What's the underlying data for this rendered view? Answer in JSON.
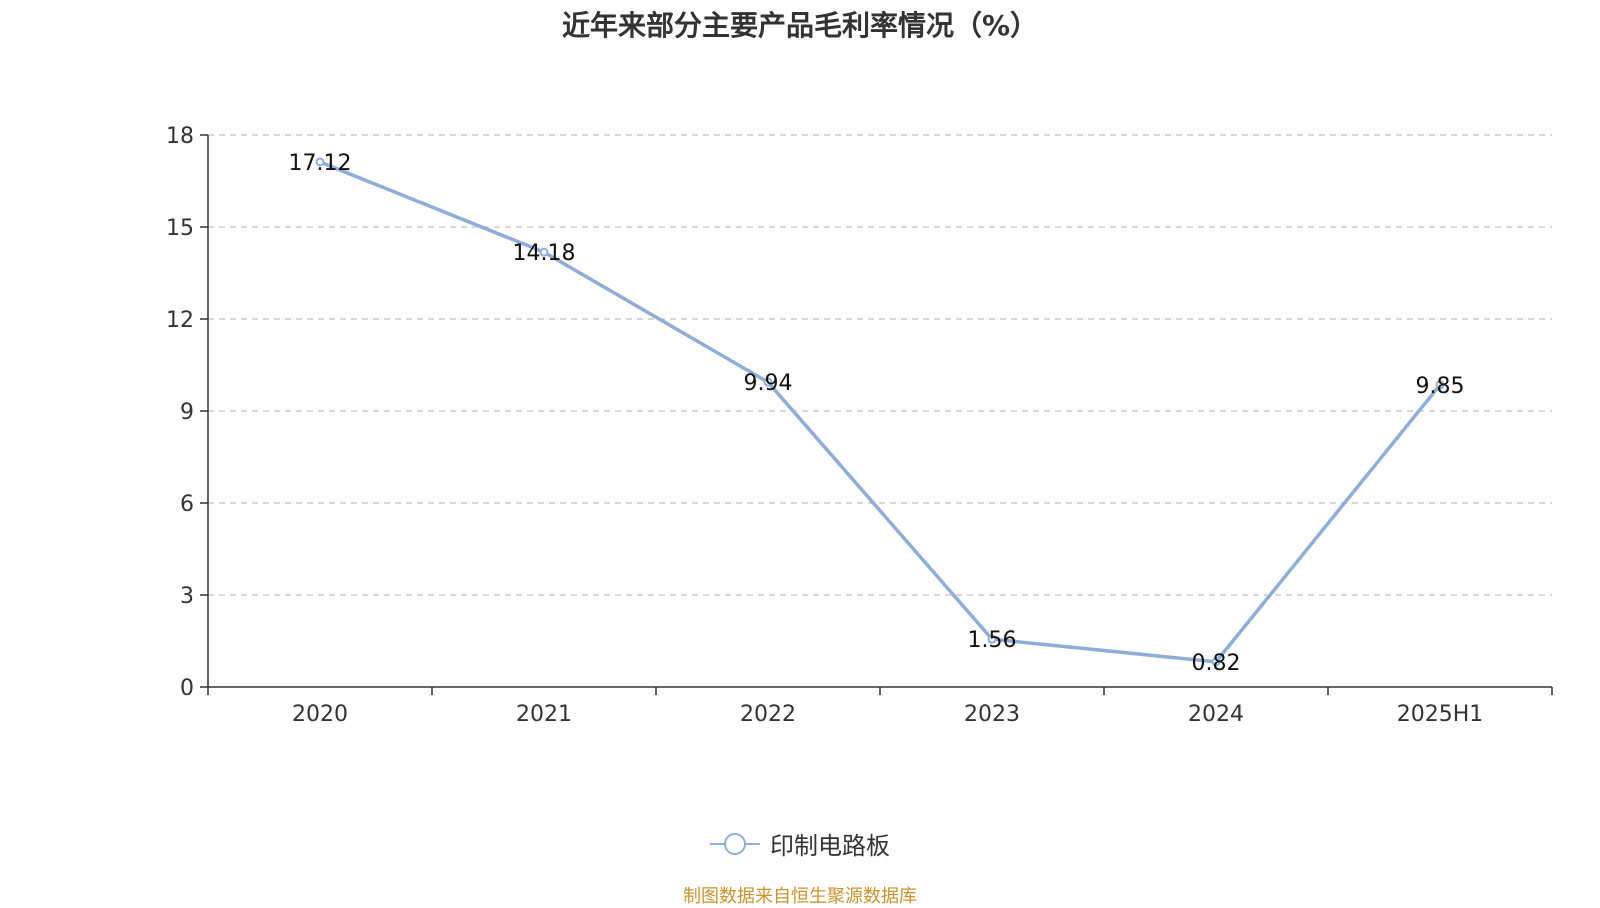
{
  "chart_data": {
    "type": "line",
    "title": "近年来部分主要产品毛利率情况（%）",
    "categories": [
      "2020",
      "2021",
      "2022",
      "2023",
      "2024",
      "2025H1"
    ],
    "series": [
      {
        "name": "印制电路板",
        "values": [
          17.12,
          14.18,
          9.94,
          1.56,
          0.82,
          9.85
        ],
        "color": "#8eaed8"
      }
    ],
    "data_labels": [
      "17.12",
      "14.18",
      "9.94",
      "1.56",
      "0.82",
      "9.85"
    ],
    "ylim": [
      0,
      18
    ],
    "yticks": [
      0,
      3,
      6,
      9,
      12,
      15,
      18
    ],
    "grid": true,
    "legend_position": "bottom-center"
  },
  "footer": {
    "source": "制图数据来自恒生聚源数据库"
  },
  "colors": {
    "accent": "#8eaed8",
    "source_text": "#c8932f",
    "grid": "#cccccc",
    "axis": "#333333"
  }
}
